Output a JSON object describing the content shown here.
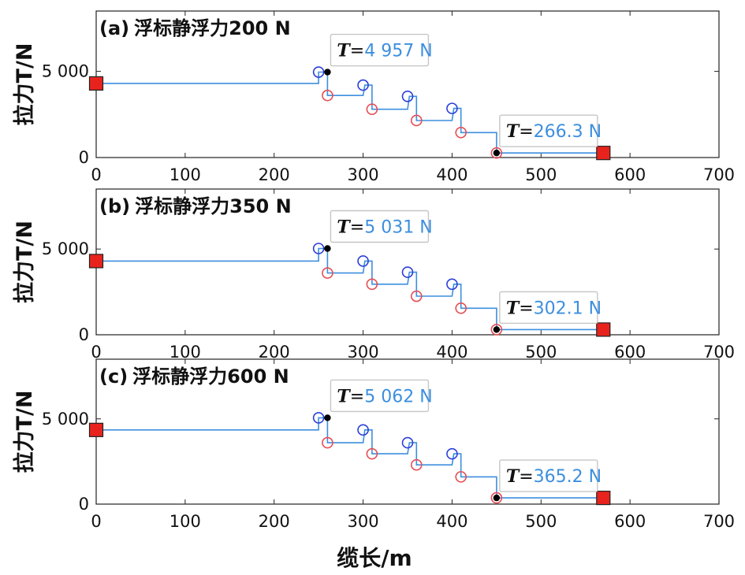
{
  "xlabel": "缆长/m",
  "colors": {
    "line": "#3d8fdf",
    "upper_marker": "#2b3ed9",
    "lower_marker": "#e64d53",
    "anchor": "#e8231d",
    "point": "#000000",
    "annotation_value": "#3d8fdf",
    "annotation_border": "#c6c6c6"
  },
  "chart_data": [
    {
      "type": "line",
      "title": "(a) 浮标静浮力200 N",
      "label_prefix": "(a)",
      "label_text": "浮标静浮力200 N",
      "ylabel": "拉力T/N",
      "xlim": [
        0,
        700
      ],
      "ylim": [
        0,
        8500
      ],
      "xticks": [
        0,
        100,
        200,
        300,
        400,
        500,
        600,
        700
      ],
      "yticks": [
        0,
        5000
      ],
      "ytick_labels": [
        "0",
        "5 000"
      ],
      "series": [
        {
          "x": [
            0,
            250,
            250,
            257,
            260,
            260,
            300,
            302,
            305,
            310,
            310,
            350,
            352,
            355,
            360,
            360,
            400,
            402,
            405,
            410,
            410,
            450,
            450,
            570
          ],
          "y": [
            4300,
            4300,
            4957,
            4957,
            4957,
            3600,
            3600,
            4200,
            4200,
            4200,
            2800,
            2800,
            3550,
            3550,
            3550,
            2150,
            2150,
            2850,
            2850,
            2850,
            1450,
            1450,
            266.3,
            266.3
          ]
        }
      ],
      "upper_markers": {
        "x": [
          250,
          300,
          350,
          400
        ],
        "y": [
          4957,
          4200,
          3550,
          2850
        ]
      },
      "lower_markers": {
        "x": [
          260,
          310,
          360,
          410,
          450
        ],
        "y": [
          3600,
          2800,
          2150,
          1450,
          266.3
        ]
      },
      "anchors": {
        "x": [
          0,
          570
        ],
        "y": [
          4300,
          266.3
        ]
      },
      "points": {
        "x": [
          260,
          450
        ],
        "y": [
          4957,
          266.3
        ]
      },
      "annotations": [
        {
          "prefix": "T",
          "eq": "=",
          "value": "4 957 N",
          "x": 260,
          "y": 4957
        },
        {
          "prefix": "T",
          "eq": "=",
          "value": "266.3 N",
          "x": 450,
          "y": 266.3
        }
      ]
    },
    {
      "type": "line",
      "title": "(b) 浮标静浮力350 N",
      "label_prefix": "(b)",
      "label_text": "浮标静浮力350 N",
      "ylabel": "拉力T/N",
      "xlim": [
        0,
        700
      ],
      "ylim": [
        0,
        8500
      ],
      "xticks": [
        0,
        100,
        200,
        300,
        400,
        500,
        600,
        700
      ],
      "yticks": [
        0,
        5000
      ],
      "ytick_labels": [
        "0",
        "5 000"
      ],
      "series": [
        {
          "x": [
            0,
            250,
            250,
            257,
            260,
            260,
            300,
            302,
            305,
            310,
            310,
            350,
            352,
            355,
            360,
            360,
            400,
            402,
            405,
            410,
            410,
            450,
            450,
            570
          ],
          "y": [
            4300,
            4300,
            5031,
            5031,
            5031,
            3600,
            3600,
            4300,
            4300,
            4300,
            2950,
            2950,
            3650,
            3650,
            3650,
            2250,
            2250,
            2950,
            2950,
            2950,
            1550,
            1550,
            302.1,
            302.1
          ]
        }
      ],
      "upper_markers": {
        "x": [
          250,
          300,
          350,
          400
        ],
        "y": [
          5031,
          4300,
          3650,
          2950
        ]
      },
      "lower_markers": {
        "x": [
          260,
          310,
          360,
          410,
          450
        ],
        "y": [
          3600,
          2950,
          2250,
          1550,
          302.1
        ]
      },
      "anchors": {
        "x": [
          0,
          570
        ],
        "y": [
          4300,
          302.1
        ]
      },
      "points": {
        "x": [
          260,
          450
        ],
        "y": [
          5031,
          302.1
        ]
      },
      "annotations": [
        {
          "prefix": "T",
          "eq": "=",
          "value": "5 031 N",
          "x": 260,
          "y": 5031
        },
        {
          "prefix": "T",
          "eq": "=",
          "value": "302.1 N",
          "x": 450,
          "y": 302.1
        }
      ]
    },
    {
      "type": "line",
      "title": "(c) 浮标静浮力600 N",
      "label_prefix": "(c)",
      "label_text": "浮标静浮力600 N",
      "ylabel": "拉力T/N",
      "xlim": [
        0,
        700
      ],
      "ylim": [
        0,
        8500
      ],
      "xticks": [
        0,
        100,
        200,
        300,
        400,
        500,
        600,
        700
      ],
      "yticks": [
        0,
        5000
      ],
      "ytick_labels": [
        "0",
        "5 000"
      ],
      "series": [
        {
          "x": [
            0,
            250,
            250,
            257,
            260,
            260,
            300,
            302,
            305,
            310,
            310,
            350,
            352,
            355,
            360,
            360,
            400,
            402,
            405,
            410,
            410,
            450,
            450,
            570
          ],
          "y": [
            4350,
            4350,
            5062,
            5062,
            5062,
            3600,
            3600,
            4350,
            4350,
            4350,
            2950,
            2950,
            3600,
            3600,
            3600,
            2300,
            2300,
            2950,
            2950,
            2950,
            1600,
            1600,
            365.2,
            365.2
          ]
        }
      ],
      "upper_markers": {
        "x": [
          250,
          300,
          350,
          400
        ],
        "y": [
          5062,
          4350,
          3600,
          2950
        ]
      },
      "lower_markers": {
        "x": [
          260,
          310,
          360,
          410,
          450
        ],
        "y": [
          3600,
          2950,
          2300,
          1600,
          365.2
        ]
      },
      "anchors": {
        "x": [
          0,
          570
        ],
        "y": [
          4350,
          365.2
        ]
      },
      "points": {
        "x": [
          260,
          450
        ],
        "y": [
          5062,
          365.2
        ]
      },
      "annotations": [
        {
          "prefix": "T",
          "eq": "=",
          "value": "5 062 N",
          "x": 260,
          "y": 5062
        },
        {
          "prefix": "T",
          "eq": "=",
          "value": "365.2 N",
          "x": 450,
          "y": 365.2
        }
      ]
    }
  ]
}
